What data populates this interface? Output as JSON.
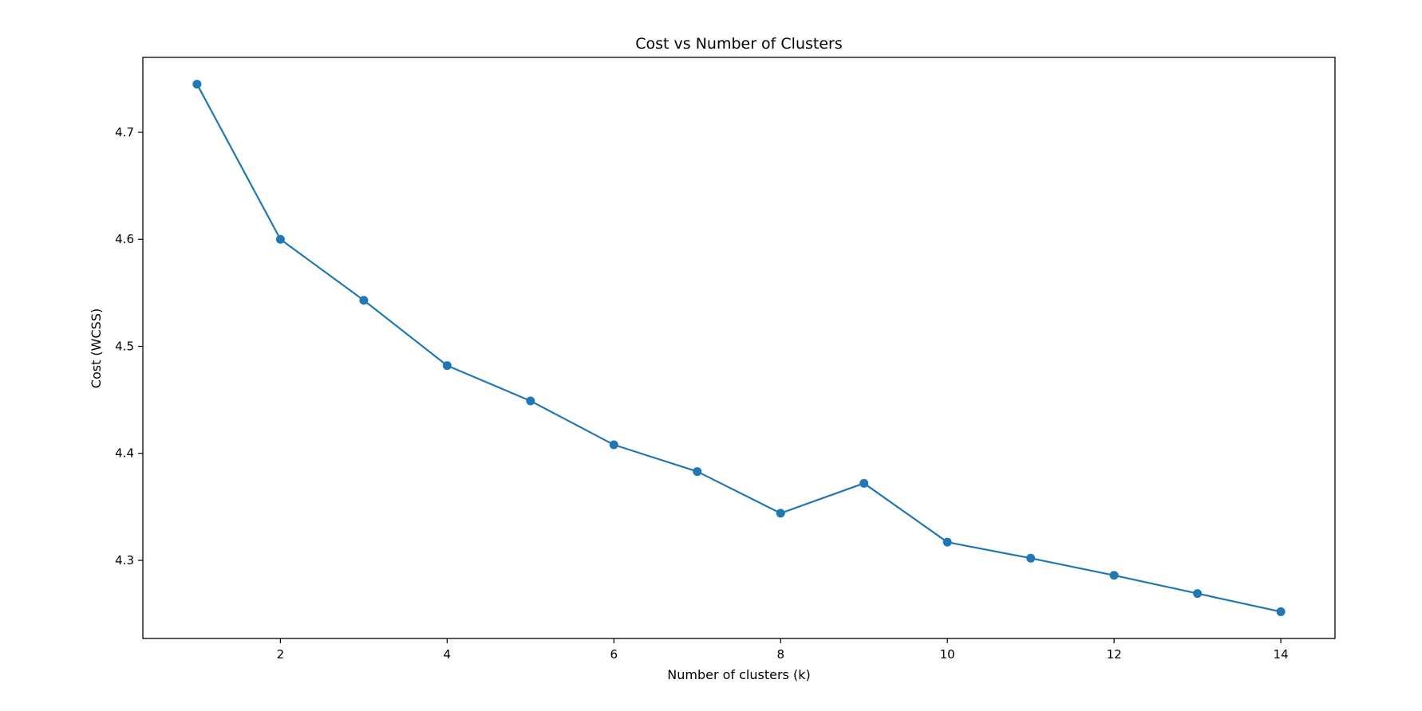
{
  "chart_data": {
    "type": "line",
    "title": "Cost vs Number of Clusters",
    "xlabel": "Number of clusters (k)",
    "ylabel": "Cost (WCSS)",
    "xlim": [
      0.35,
      14.65
    ],
    "ylim": [
      4.227,
      4.77
    ],
    "xticks": [
      2,
      4,
      6,
      8,
      10,
      12,
      14
    ],
    "yticks": [
      4.3,
      4.4,
      4.5,
      4.6,
      4.7
    ],
    "grid": false,
    "color": "#1f77b4",
    "marker": "circle",
    "series": [
      {
        "x": [
          1,
          2,
          3,
          4,
          5,
          6,
          7,
          8,
          9,
          10,
          11,
          12,
          13,
          14
        ],
        "values": [
          4.745,
          4.6,
          4.543,
          4.482,
          4.449,
          4.408,
          4.383,
          4.344,
          4.372,
          4.317,
          4.302,
          4.286,
          4.269,
          4.252
        ]
      }
    ]
  }
}
